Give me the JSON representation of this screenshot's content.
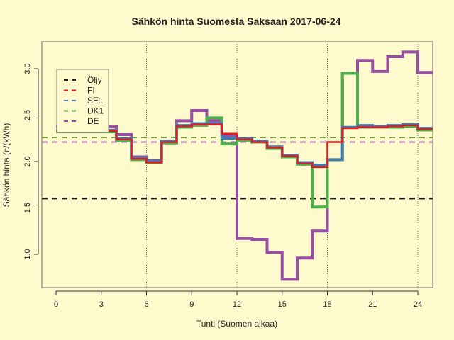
{
  "chart_data": {
    "type": "line",
    "subtype": "step",
    "title": "Sähkön hinta Suomesta Saksaan 2017-06-24",
    "xlabel": "Tunti (Suomen aikaa)",
    "ylabel": "Sähkön hinta (c/(kWh)",
    "xlim": [
      -1,
      25
    ],
    "ylim": [
      0.63,
      3.29
    ],
    "xticks": [
      0,
      3,
      6,
      9,
      12,
      15,
      18,
      21,
      24
    ],
    "yticks": [
      1.0,
      1.5,
      2.0,
      2.5,
      3.0
    ],
    "ytick_labels": [
      "1.0",
      "1.5",
      "2.0",
      "2.5",
      "3.0"
    ],
    "vertical_gridlines": [
      6,
      12,
      18,
      24
    ],
    "grid": "vertical dotted at 6, 12, 18, 24",
    "legend_position": "top-left",
    "legend": [
      {
        "name": "Öljy",
        "color": "#1a1a1a"
      },
      {
        "name": "FI",
        "color": "#e41a1c"
      },
      {
        "name": "SE1",
        "color": "#377eb8"
      },
      {
        "name": "DK1",
        "color": "#4daf4a"
      },
      {
        "name": "DE",
        "color": "#984ea3"
      }
    ],
    "hours": [
      0,
      1,
      2,
      3,
      4,
      5,
      6,
      7,
      8,
      9,
      10,
      11,
      12,
      13,
      14,
      15,
      16,
      17,
      18,
      19,
      20,
      21,
      22,
      23,
      24
    ],
    "series": [
      {
        "name": "FI",
        "color": "#e41a1c",
        "values": [
          2.33,
          2.33,
          2.33,
          2.33,
          2.24,
          2.03,
          1.99,
          2.21,
          2.38,
          2.4,
          2.4,
          2.3,
          2.24,
          2.21,
          2.15,
          2.06,
          1.98,
          1.94,
          2.21,
          2.36,
          2.37,
          2.37,
          2.38,
          2.39,
          2.35
        ]
      },
      {
        "name": "SE1",
        "color": "#377eb8",
        "values": [
          2.34,
          2.34,
          2.34,
          2.34,
          2.25,
          2.04,
          2.0,
          2.22,
          2.39,
          2.41,
          2.41,
          2.25,
          2.25,
          2.22,
          2.16,
          2.07,
          1.99,
          1.96,
          2.02,
          2.37,
          2.39,
          2.38,
          2.39,
          2.4,
          2.36
        ]
      },
      {
        "name": "DK1",
        "color": "#4daf4a",
        "values": [
          2.32,
          2.32,
          2.32,
          2.32,
          2.23,
          2.02,
          1.99,
          2.2,
          2.37,
          2.39,
          2.47,
          2.19,
          2.23,
          2.21,
          2.14,
          2.05,
          1.97,
          1.51,
          2.02,
          2.95,
          2.37,
          2.37,
          2.37,
          2.38,
          2.34
        ]
      },
      {
        "name": "DE",
        "color": "#984ea3",
        "values": [
          2.38,
          2.38,
          2.38,
          2.38,
          2.29,
          2.05,
          2.01,
          2.21,
          2.44,
          2.55,
          2.44,
          2.28,
          1.17,
          1.16,
          1.02,
          0.73,
          0.96,
          1.25,
          2.02,
          2.95,
          3.09,
          2.97,
          3.13,
          3.18,
          2.96
        ]
      }
    ],
    "reference_lines": [
      {
        "name": "Öljy",
        "value": 1.6,
        "color": "#1a1a1a",
        "style": "dashed"
      },
      {
        "name": "DK1 average",
        "value": 2.26,
        "color": "#6b9a3a",
        "style": "dashed"
      },
      {
        "name": "DE average",
        "value": 2.21,
        "color": "#b070b8",
        "style": "dashed"
      }
    ]
  }
}
